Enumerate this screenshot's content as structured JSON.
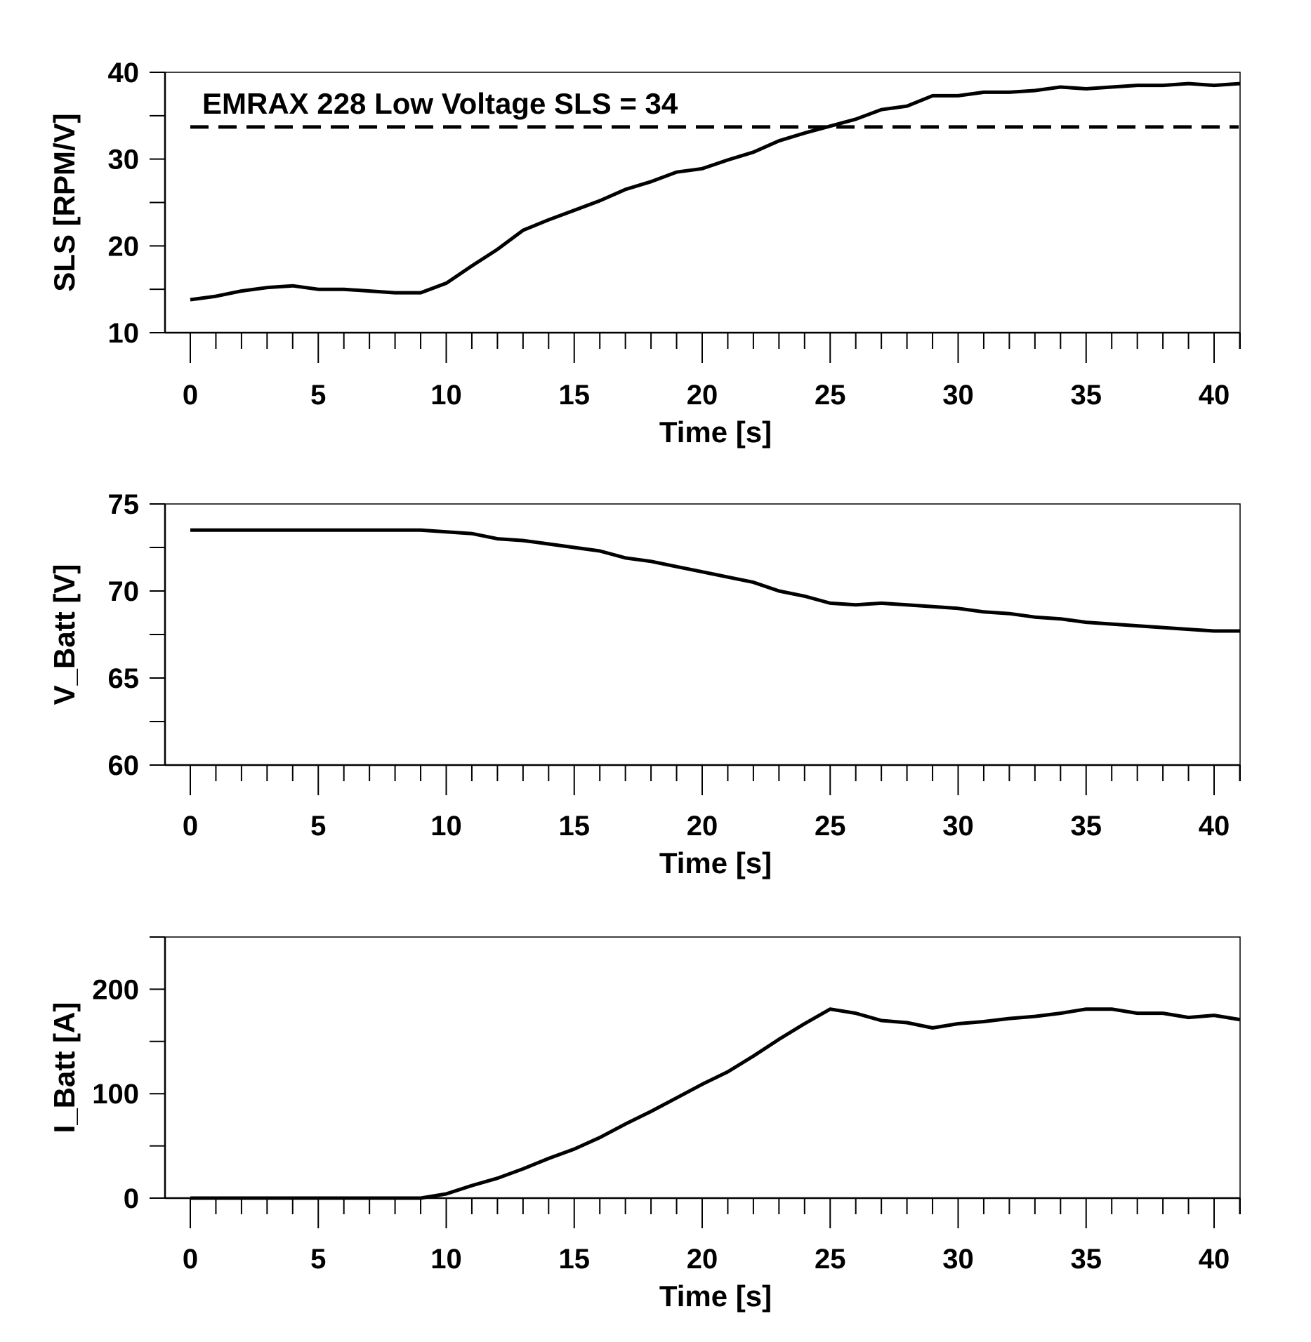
{
  "colors": {
    "line": "#000000",
    "background": "#ffffff",
    "frame": "#000000"
  },
  "chart_data": [
    {
      "type": "line",
      "xlabel": "Time [s]",
      "ylabel": "SLS [RPM/V]",
      "xlim": [
        0,
        41
      ],
      "ylim": [
        10,
        40
      ],
      "x_major_ticks": [
        0,
        5,
        10,
        15,
        20,
        25,
        30,
        35,
        40
      ],
      "x_tick_labels": [
        "0",
        "5",
        "10",
        "15",
        "20",
        "25",
        "30",
        "35",
        "40"
      ],
      "y_major_ticks": [
        10,
        20,
        30,
        40
      ],
      "y_tick_labels": [
        "10",
        "20",
        "30",
        "40"
      ],
      "y_minor_ticks": [
        15,
        25,
        35
      ],
      "grid": false,
      "reference_line": {
        "value": 33.7,
        "style": "dashed",
        "label": "EMRAX 228 Low Voltage SLS = 34"
      },
      "series": [
        {
          "name": "SLS",
          "x": [
            0,
            1,
            2,
            3,
            4,
            5,
            6,
            7,
            8,
            9,
            10,
            11,
            12,
            13,
            14,
            15,
            16,
            17,
            18,
            19,
            20,
            21,
            22,
            23,
            24,
            25,
            26,
            27,
            28,
            29,
            30,
            31,
            32,
            33,
            34,
            35,
            36,
            37,
            38,
            39,
            40,
            41
          ],
          "values": [
            13.8,
            14.2,
            14.8,
            15.2,
            15.4,
            15.0,
            15.0,
            14.8,
            14.6,
            14.6,
            15.7,
            17.7,
            19.6,
            21.8,
            23.0,
            24.1,
            25.2,
            26.5,
            27.4,
            28.5,
            28.9,
            29.9,
            30.8,
            32.1,
            33.0,
            33.8,
            34.6,
            35.7,
            36.1,
            37.3,
            37.3,
            37.7,
            37.7,
            37.9,
            38.3,
            38.1,
            38.3,
            38.5,
            38.5,
            38.7,
            38.5,
            38.7
          ]
        }
      ]
    },
    {
      "type": "line",
      "xlabel": "Time [s]",
      "ylabel": "V_Batt [V]",
      "xlim": [
        0,
        41
      ],
      "ylim": [
        60,
        75
      ],
      "x_major_ticks": [
        0,
        5,
        10,
        15,
        20,
        25,
        30,
        35,
        40
      ],
      "x_tick_labels": [
        "0",
        "5",
        "10",
        "15",
        "20",
        "25",
        "30",
        "35",
        "40"
      ],
      "y_major_ticks": [
        60,
        65,
        70,
        75
      ],
      "y_tick_labels": [
        "60",
        "65",
        "70",
        "75"
      ],
      "y_minor_ticks": [
        62.5,
        67.5,
        72.5
      ],
      "grid": false,
      "series": [
        {
          "name": "V_Batt",
          "x": [
            0,
            1,
            2,
            3,
            4,
            5,
            6,
            7,
            8,
            9,
            10,
            11,
            12,
            13,
            14,
            15,
            16,
            17,
            18,
            19,
            20,
            21,
            22,
            23,
            24,
            25,
            26,
            27,
            28,
            29,
            30,
            31,
            32,
            33,
            34,
            35,
            36,
            37,
            38,
            39,
            40,
            41
          ],
          "values": [
            73.5,
            73.5,
            73.5,
            73.5,
            73.5,
            73.5,
            73.5,
            73.5,
            73.5,
            73.5,
            73.4,
            73.3,
            73.0,
            72.9,
            72.7,
            72.5,
            72.3,
            71.9,
            71.7,
            71.4,
            71.1,
            70.8,
            70.5,
            70.0,
            69.7,
            69.3,
            69.2,
            69.3,
            69.2,
            69.1,
            69.0,
            68.8,
            68.7,
            68.5,
            68.4,
            68.2,
            68.1,
            68.0,
            67.9,
            67.8,
            67.7,
            67.7
          ]
        }
      ]
    },
    {
      "type": "line",
      "xlabel": "Time [s]",
      "ylabel": "I_Batt [A]",
      "xlim": [
        0,
        41
      ],
      "ylim": [
        0,
        250
      ],
      "x_major_ticks": [
        0,
        5,
        10,
        15,
        20,
        25,
        30,
        35,
        40
      ],
      "x_tick_labels": [
        "0",
        "5",
        "10",
        "15",
        "20",
        "25",
        "30",
        "35",
        "40"
      ],
      "y_major_ticks": [
        0,
        100,
        200
      ],
      "y_tick_labels": [
        "0",
        "100",
        "200"
      ],
      "y_minor_ticks": [
        50,
        150,
        250
      ],
      "grid": false,
      "series": [
        {
          "name": "I_Batt",
          "x": [
            0,
            1,
            2,
            3,
            4,
            5,
            6,
            7,
            8,
            9,
            10,
            11,
            12,
            13,
            14,
            15,
            16,
            17,
            18,
            19,
            20,
            21,
            22,
            23,
            24,
            25,
            26,
            27,
            28,
            29,
            30,
            31,
            32,
            33,
            34,
            35,
            36,
            37,
            38,
            39,
            40,
            41
          ],
          "values": [
            0,
            0,
            0,
            0,
            0,
            0,
            0,
            0,
            0,
            0,
            4,
            12,
            19,
            28,
            38,
            47,
            58,
            71,
            83,
            96,
            109,
            121,
            136,
            152,
            167,
            181,
            177,
            170,
            168,
            163,
            167,
            169,
            172,
            174,
            177,
            181,
            181,
            177,
            177,
            173,
            175,
            171
          ]
        }
      ]
    }
  ]
}
